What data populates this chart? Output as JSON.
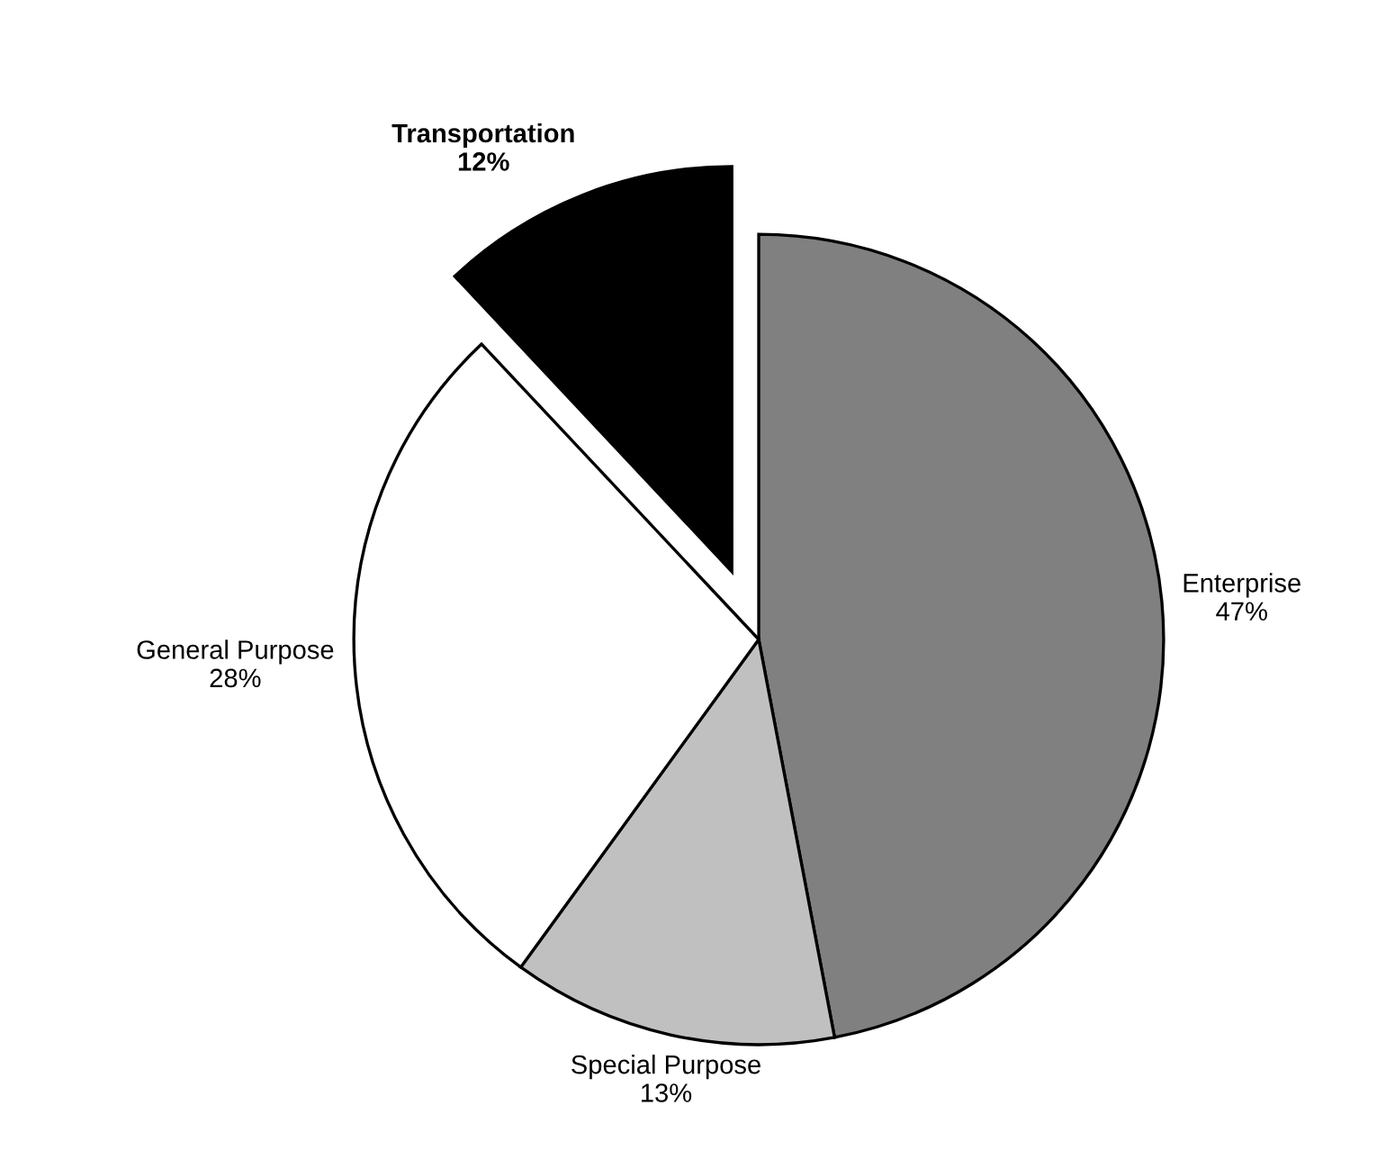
{
  "chart_data": {
    "type": "pie",
    "categories": [
      "Enterprise",
      "Special Purpose",
      "General Purpose",
      "Transportation"
    ],
    "values": [
      47,
      13,
      28,
      12
    ],
    "value_labels": [
      "47%",
      "13%",
      "28%",
      "12%"
    ],
    "colors": [
      "#808080",
      "#c0c0c0",
      "#ffffff",
      "#000000"
    ],
    "legend": false
  }
}
